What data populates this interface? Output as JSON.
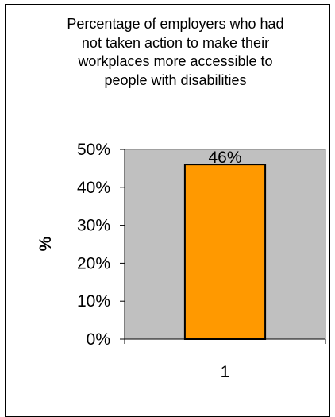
{
  "chart_data": {
    "type": "bar",
    "title": "Percentage of employers who had not taken action to make their workplaces more accessible to people with disabilities",
    "title_lines": [
      "Percentage of employers who had",
      "not taken action to make their",
      "workplaces more accessible to",
      "people with disabilities"
    ],
    "xlabel": "",
    "ylabel": "%",
    "categories": [
      "1"
    ],
    "values": [
      46
    ],
    "data_labels": [
      "46%"
    ],
    "yticks": [
      "0%",
      "10%",
      "20%",
      "30%",
      "40%",
      "50%"
    ],
    "ylim": [
      0,
      50
    ],
    "grid": false,
    "legend": "none",
    "colors": {
      "bar_fill": "#ff9900",
      "bar_stroke": "#000000",
      "plot_background": "#c0c0c0",
      "plot_border": "#808080"
    }
  }
}
